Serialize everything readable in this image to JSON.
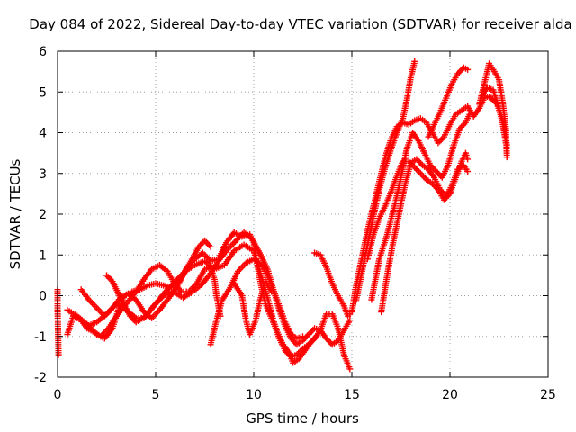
{
  "chart_data": {
    "type": "scatter",
    "title": "Day 084 of 2022, Sidereal Day-to-day VTEC variation (SDTVAR) for receiver alda",
    "xlabel": "GPS time / hours",
    "ylabel": "SDTVAR / TECUs",
    "xlim": [
      0,
      25
    ],
    "ylim": [
      -2,
      6
    ],
    "xticks": [
      0,
      5,
      10,
      15,
      20,
      25
    ],
    "yticks": [
      -2,
      -1,
      0,
      1,
      2,
      3,
      4,
      5,
      6
    ],
    "grid": true,
    "marker": "plus",
    "color": "#ff0000",
    "series": [
      {
        "points": [
          [
            0,
            0.15
          ],
          [
            0,
            -0.3
          ],
          [
            0.05,
            -1.45
          ]
        ]
      },
      {
        "points": [
          [
            0.5,
            -0.95
          ],
          [
            0.8,
            -0.5
          ],
          [
            1.2,
            -0.6
          ],
          [
            1.5,
            -0.8
          ],
          [
            1.9,
            -0.9
          ],
          [
            2.2,
            -1.0
          ],
          [
            2.6,
            -0.8
          ],
          [
            3.0,
            -0.5
          ],
          [
            3.5,
            -0.2
          ],
          [
            4.0,
            0.1
          ],
          [
            4.4,
            0.4
          ],
          [
            4.8,
            0.65
          ],
          [
            5.2,
            0.75
          ],
          [
            5.6,
            0.6
          ],
          [
            5.9,
            0.35
          ],
          [
            6.3,
            0.1
          ],
          [
            6.7,
            0.1
          ],
          [
            7.1,
            0.3
          ],
          [
            7.5,
            0.65
          ],
          [
            7.8,
            0.7
          ],
          [
            8.0,
            0.4
          ],
          [
            8.1,
            0.0
          ],
          [
            8.3,
            -0.5
          ]
        ]
      },
      {
        "points": [
          [
            0.5,
            -0.35
          ],
          [
            1.0,
            -0.5
          ],
          [
            1.5,
            -0.7
          ],
          [
            2.0,
            -0.95
          ],
          [
            2.4,
            -1.05
          ],
          [
            2.8,
            -0.8
          ],
          [
            3.1,
            -0.35
          ],
          [
            3.4,
            0.0
          ],
          [
            3.8,
            0.1
          ],
          [
            4.2,
            0.15
          ],
          [
            4.6,
            0.25
          ],
          [
            5.0,
            0.3
          ],
          [
            5.4,
            0.25
          ],
          [
            5.8,
            0.2
          ],
          [
            6.2,
            0.35
          ],
          [
            6.6,
            0.7
          ],
          [
            7.0,
            0.9
          ],
          [
            7.4,
            1.05
          ],
          [
            7.8,
            0.85
          ],
          [
            8.2,
            0.9
          ],
          [
            8.6,
            1.3
          ],
          [
            9.0,
            1.55
          ],
          [
            9.4,
            1.45
          ],
          [
            9.8,
            1.5
          ],
          [
            10.0,
            1.3
          ],
          [
            10.2,
            0.7
          ],
          [
            10.4,
            0.2
          ],
          [
            10.6,
            -0.2
          ],
          [
            10.9,
            -0.55
          ],
          [
            11.2,
            -0.9
          ],
          [
            11.5,
            -1.2
          ],
          [
            11.8,
            -1.4
          ],
          [
            12.0,
            -1.65
          ],
          [
            12.3,
            -1.55
          ],
          [
            12.6,
            -1.35
          ],
          [
            12.9,
            -1.15
          ],
          [
            13.2,
            -1.0
          ]
        ]
      },
      {
        "points": [
          [
            1.2,
            0.15
          ],
          [
            1.6,
            -0.1
          ],
          [
            2.0,
            -0.3
          ],
          [
            2.4,
            -0.5
          ],
          [
            2.8,
            -0.3
          ],
          [
            3.2,
            -0.05
          ],
          [
            3.6,
            0.05
          ],
          [
            4.0,
            -0.1
          ],
          [
            4.4,
            -0.4
          ],
          [
            4.8,
            -0.55
          ],
          [
            5.2,
            -0.35
          ],
          [
            5.6,
            -0.1
          ],
          [
            6.0,
            0.15
          ],
          [
            6.4,
            0.5
          ],
          [
            6.8,
            0.85
          ],
          [
            7.2,
            1.2
          ],
          [
            7.5,
            1.35
          ],
          [
            7.8,
            1.2
          ]
        ]
      },
      {
        "points": [
          [
            1.5,
            -0.75
          ],
          [
            2.0,
            -0.65
          ],
          [
            2.5,
            -0.45
          ],
          [
            3.0,
            -0.2
          ],
          [
            3.5,
            -0.35
          ],
          [
            4.0,
            -0.55
          ],
          [
            4.4,
            -0.55
          ],
          [
            4.9,
            -0.25
          ],
          [
            5.4,
            0.0
          ],
          [
            5.9,
            0.1
          ],
          [
            6.4,
            -0.05
          ],
          [
            6.9,
            0.1
          ],
          [
            7.4,
            0.3
          ],
          [
            7.8,
            0.55
          ],
          [
            8.2,
            0.85
          ],
          [
            8.6,
            1.1
          ],
          [
            9.0,
            1.3
          ],
          [
            9.5,
            1.55
          ],
          [
            9.9,
            1.4
          ],
          [
            10.3,
            1.05
          ],
          [
            10.7,
            0.65
          ],
          [
            11.0,
            0.15
          ],
          [
            11.3,
            -0.35
          ],
          [
            11.6,
            -0.75
          ],
          [
            11.9,
            -1.05
          ],
          [
            12.2,
            -1.2
          ],
          [
            12.5,
            -1.1
          ],
          [
            12.8,
            -0.95
          ],
          [
            13.1,
            -0.8
          ],
          [
            13.4,
            -0.85
          ],
          [
            13.7,
            -1.05
          ],
          [
            14.0,
            -1.2
          ],
          [
            14.3,
            -1.1
          ],
          [
            14.6,
            -0.85
          ],
          [
            14.9,
            -0.6
          ]
        ]
      },
      {
        "points": [
          [
            2.5,
            0.5
          ],
          [
            2.8,
            0.35
          ],
          [
            3.2,
            -0.05
          ],
          [
            3.7,
            -0.5
          ],
          [
            4.0,
            -0.65
          ],
          [
            4.5,
            -0.5
          ],
          [
            5.0,
            -0.2
          ],
          [
            5.5,
            0.1
          ],
          [
            6.0,
            0.35
          ],
          [
            6.5,
            0.6
          ],
          [
            7.0,
            0.75
          ],
          [
            7.5,
            0.85
          ],
          [
            8.0,
            0.65
          ],
          [
            8.5,
            0.75
          ],
          [
            9.0,
            1.1
          ],
          [
            9.5,
            1.25
          ],
          [
            10.0,
            1.1
          ],
          [
            10.4,
            0.45
          ],
          [
            10.7,
            -0.05
          ],
          [
            11.0,
            -0.6
          ],
          [
            11.3,
            -1.05
          ],
          [
            11.6,
            -1.35
          ],
          [
            11.9,
            -1.5
          ],
          [
            12.2,
            -1.45
          ],
          [
            12.5,
            -1.3
          ],
          [
            12.8,
            -1.2
          ],
          [
            13.1,
            -1.05
          ],
          [
            13.4,
            -0.85
          ],
          [
            13.7,
            -0.45
          ],
          [
            14.0,
            -0.45
          ],
          [
            14.3,
            -0.8
          ],
          [
            14.6,
            -1.45
          ],
          [
            14.9,
            -1.8
          ]
        ]
      },
      {
        "points": [
          [
            7.8,
            -1.2
          ],
          [
            8.1,
            -0.6
          ],
          [
            8.4,
            -0.1
          ],
          [
            8.8,
            0.2
          ],
          [
            9.2,
            0.6
          ],
          [
            9.6,
            0.8
          ],
          [
            10.0,
            0.9
          ],
          [
            10.4,
            0.75
          ],
          [
            10.7,
            0.5
          ],
          [
            11.0,
            0.15
          ],
          [
            11.3,
            -0.25
          ],
          [
            11.6,
            -0.65
          ],
          [
            11.9,
            -0.95
          ],
          [
            12.2,
            -1.05
          ],
          [
            12.5,
            -1.0
          ]
        ]
      },
      {
        "points": [
          [
            9.0,
            0.3
          ],
          [
            9.4,
            0.0
          ],
          [
            9.6,
            -0.6
          ],
          [
            9.8,
            -0.95
          ],
          [
            10.1,
            -0.6
          ],
          [
            10.3,
            -0.15
          ],
          [
            10.6,
            0.35
          ],
          [
            10.9,
            0.1
          ]
        ]
      },
      {
        "points": [
          [
            13.1,
            1.05
          ],
          [
            13.4,
            1.0
          ],
          [
            13.7,
            0.7
          ],
          [
            14.0,
            0.3
          ],
          [
            14.3,
            0.0
          ],
          [
            14.6,
            -0.25
          ],
          [
            14.8,
            -0.5
          ],
          [
            15.0,
            -0.4
          ],
          [
            15.2,
            0.2
          ],
          [
            15.5,
            0.9
          ],
          [
            15.8,
            1.6
          ],
          [
            16.1,
            2.2
          ],
          [
            16.4,
            2.8
          ],
          [
            16.7,
            3.4
          ],
          [
            17.0,
            3.85
          ],
          [
            17.3,
            4.15
          ],
          [
            17.6,
            4.25
          ],
          [
            17.9,
            4.2
          ],
          [
            18.2,
            4.3
          ],
          [
            18.5,
            4.35
          ],
          [
            18.8,
            4.25
          ],
          [
            19.1,
            4.0
          ],
          [
            19.4,
            3.75
          ],
          [
            19.7,
            3.9
          ],
          [
            20.0,
            4.2
          ],
          [
            20.3,
            4.45
          ],
          [
            20.6,
            4.55
          ],
          [
            20.9,
            4.65
          ],
          [
            21.2,
            4.4
          ],
          [
            21.5,
            4.6
          ],
          [
            21.8,
            4.9
          ],
          [
            22.1,
            4.85
          ],
          [
            22.4,
            4.7
          ],
          [
            22.7,
            4.3
          ],
          [
            22.9,
            3.7
          ]
        ]
      },
      {
        "points": [
          [
            15.2,
            -0.15
          ],
          [
            15.5,
            0.55
          ],
          [
            15.8,
            1.25
          ],
          [
            16.1,
            1.95
          ],
          [
            16.4,
            2.6
          ],
          [
            16.7,
            3.15
          ],
          [
            17.0,
            3.6
          ],
          [
            17.3,
            4.0
          ],
          [
            17.6,
            4.35
          ],
          [
            17.8,
            4.8
          ],
          [
            18.0,
            5.35
          ],
          [
            18.2,
            5.75
          ]
        ]
      },
      {
        "points": [
          [
            15.8,
            0.9
          ],
          [
            16.1,
            1.5
          ],
          [
            16.4,
            1.9
          ],
          [
            16.7,
            2.2
          ],
          [
            17.0,
            2.55
          ],
          [
            17.3,
            2.95
          ],
          [
            17.6,
            3.3
          ],
          [
            17.9,
            3.3
          ],
          [
            18.2,
            3.15
          ],
          [
            18.5,
            3.0
          ],
          [
            18.8,
            2.85
          ],
          [
            19.1,
            2.75
          ],
          [
            19.4,
            2.6
          ],
          [
            19.7,
            2.35
          ],
          [
            20.0,
            2.5
          ],
          [
            20.3,
            2.9
          ],
          [
            20.6,
            3.3
          ],
          [
            20.8,
            3.5
          ],
          [
            20.9,
            3.35
          ]
        ]
      },
      {
        "points": [
          [
            16.0,
            -0.1
          ],
          [
            16.4,
            0.9
          ],
          [
            16.8,
            1.5
          ],
          [
            17.2,
            2.25
          ],
          [
            17.5,
            2.9
          ],
          [
            17.8,
            3.6
          ],
          [
            18.1,
            4.0
          ],
          [
            18.4,
            3.8
          ],
          [
            18.7,
            3.5
          ],
          [
            19.0,
            3.2
          ],
          [
            19.3,
            3.05
          ],
          [
            19.6,
            2.9
          ],
          [
            19.9,
            3.2
          ],
          [
            20.2,
            3.7
          ],
          [
            20.5,
            4.1
          ],
          [
            20.8,
            4.25
          ],
          [
            21.0,
            4.45
          ]
        ]
      },
      {
        "points": [
          [
            16.5,
            -0.4
          ],
          [
            16.8,
            0.5
          ],
          [
            17.1,
            1.3
          ],
          [
            17.4,
            2.0
          ],
          [
            17.7,
            2.7
          ],
          [
            18.0,
            3.25
          ],
          [
            18.3,
            3.35
          ],
          [
            18.6,
            3.2
          ],
          [
            18.9,
            3.1
          ],
          [
            19.2,
            2.9
          ],
          [
            19.5,
            2.6
          ],
          [
            19.8,
            2.45
          ],
          [
            20.1,
            2.7
          ],
          [
            20.4,
            3.1
          ],
          [
            20.7,
            3.2
          ],
          [
            20.9,
            3.05
          ]
        ]
      },
      {
        "points": [
          [
            18.9,
            3.9
          ],
          [
            19.2,
            4.2
          ],
          [
            19.5,
            4.5
          ],
          [
            19.8,
            4.85
          ],
          [
            20.1,
            5.2
          ],
          [
            20.4,
            5.45
          ],
          [
            20.7,
            5.6
          ],
          [
            20.9,
            5.55
          ]
        ]
      },
      {
        "points": [
          [
            21.5,
            4.7
          ],
          [
            21.8,
            5.3
          ],
          [
            22.0,
            5.7
          ],
          [
            22.2,
            5.55
          ],
          [
            22.5,
            5.3
          ],
          [
            22.7,
            4.7
          ],
          [
            22.85,
            4.1
          ],
          [
            22.9,
            3.4
          ]
        ]
      },
      {
        "points": [
          [
            21.6,
            4.9
          ],
          [
            21.9,
            5.1
          ],
          [
            22.2,
            5.05
          ],
          [
            22.5,
            4.6
          ],
          [
            22.7,
            4.2
          ],
          [
            22.85,
            3.75
          ]
        ]
      }
    ]
  }
}
